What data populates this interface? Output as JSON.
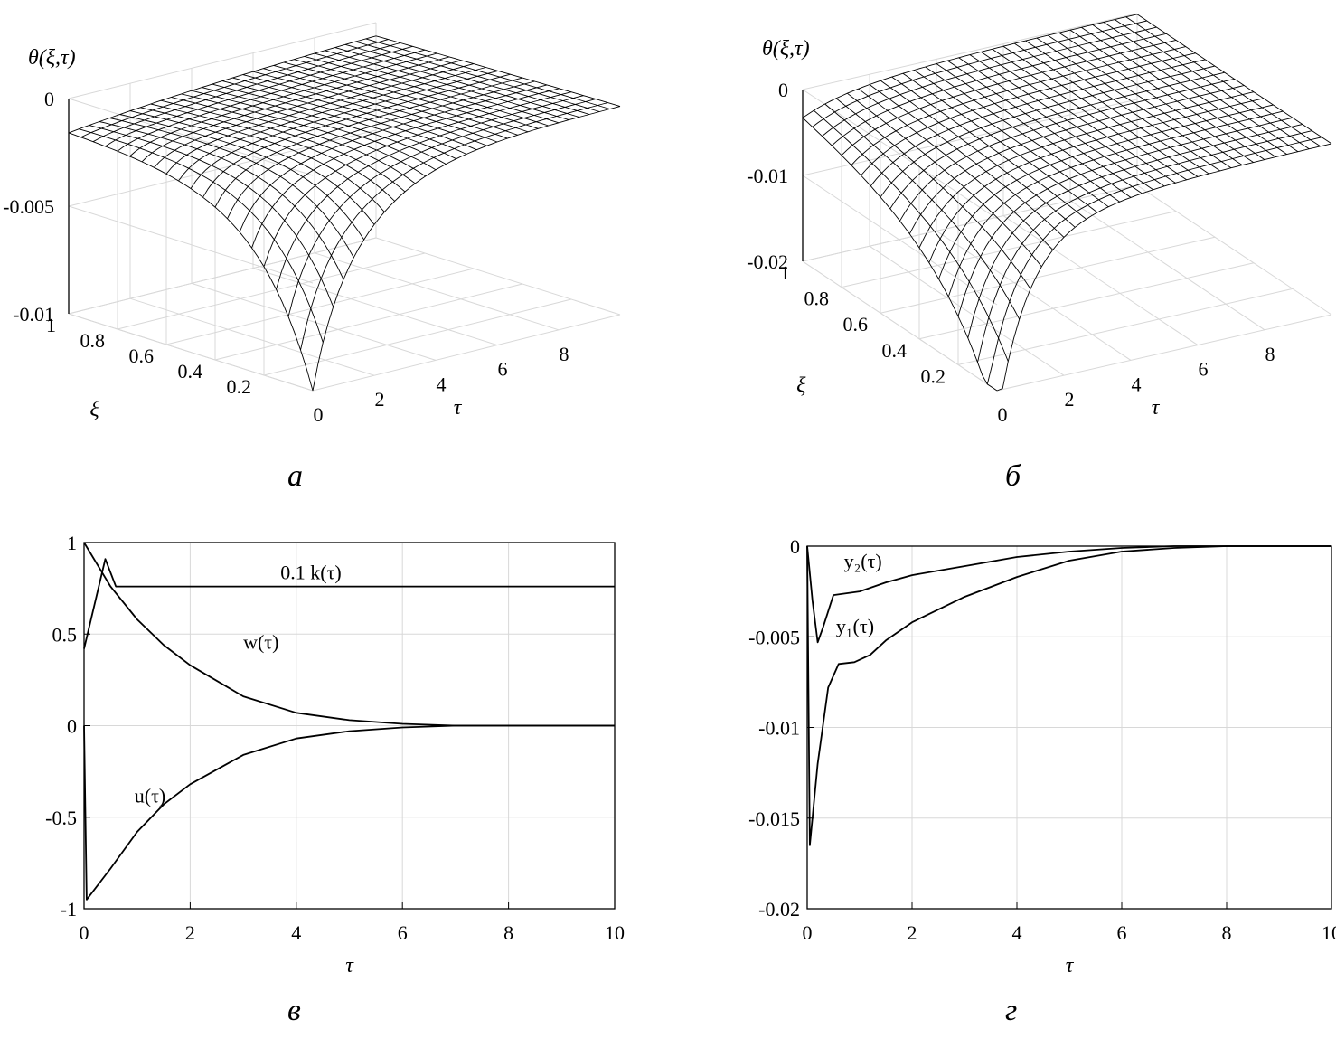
{
  "chart_data": [
    {
      "id": "a",
      "type": "surface",
      "panel_label": "а",
      "zlabel": "θ(ξ,τ)",
      "xlabel": "τ",
      "ylabel": "ξ",
      "xlim": [
        0,
        10
      ],
      "ylim": [
        0,
        1
      ],
      "zlim": [
        -0.01,
        0
      ],
      "x_ticks": [
        "0",
        "2",
        "4",
        "6",
        "8"
      ],
      "y_ticks": [
        "0.2",
        "0.4",
        "0.6",
        "0.8",
        "1"
      ],
      "z_ticks": [
        "0",
        "-0.005",
        "-0.01"
      ],
      "surface_min": -0.01,
      "surface_edge_xi1": -0.0015
    },
    {
      "id": "b",
      "type": "surface",
      "panel_label": "б",
      "zlabel": "θ(ξ,τ)",
      "xlabel": "τ",
      "ylabel": "ξ",
      "xlim": [
        0,
        10
      ],
      "ylim": [
        0,
        1
      ],
      "zlim": [
        -0.02,
        0
      ],
      "x_ticks": [
        "0",
        "2",
        "4",
        "6",
        "8"
      ],
      "y_ticks": [
        "0.2",
        "0.4",
        "0.6",
        "0.8",
        "1"
      ],
      "z_ticks": [
        "0",
        "-0.01",
        "-0.02"
      ],
      "surface_min": -0.0165
    },
    {
      "id": "c",
      "type": "line",
      "panel_label": "в",
      "xlabel": "τ",
      "xlim": [
        0,
        10
      ],
      "ylim": [
        -1,
        1
      ],
      "x_ticks": [
        "0",
        "2",
        "4",
        "6",
        "8",
        "10"
      ],
      "y_ticks": [
        "1",
        "0.5",
        "0",
        "-0.5",
        "-1"
      ],
      "series": [
        {
          "name": "0.1 k(τ)",
          "x": [
            0,
            0.4,
            0.6,
            2,
            4,
            6,
            8,
            10
          ],
          "values": [
            0.42,
            0.91,
            0.76,
            0.76,
            0.76,
            0.76,
            0.76,
            0.76
          ]
        },
        {
          "name": "w(τ)",
          "x": [
            0,
            0.5,
            1,
            1.5,
            2,
            3,
            4,
            5,
            6,
            7,
            8,
            10
          ],
          "values": [
            1,
            0.76,
            0.58,
            0.44,
            0.33,
            0.16,
            0.07,
            0.03,
            0.01,
            0,
            0,
            0
          ]
        },
        {
          "name": "u(τ)",
          "x": [
            0,
            0.05,
            0.5,
            1,
            1.5,
            2,
            3,
            4,
            5,
            6,
            7,
            8,
            10
          ],
          "values": [
            0,
            -0.95,
            -0.78,
            -0.58,
            -0.43,
            -0.32,
            -0.16,
            -0.07,
            -0.03,
            -0.01,
            0,
            0,
            0
          ]
        }
      ]
    },
    {
      "id": "d",
      "type": "line",
      "panel_label": "г",
      "xlabel": "τ",
      "xlim": [
        0,
        10
      ],
      "ylim": [
        -0.02,
        0
      ],
      "x_ticks": [
        "0",
        "2",
        "4",
        "6",
        "8",
        "10"
      ],
      "y_ticks": [
        "0",
        "-0.005",
        "-0.01",
        "-0.015",
        "-0.02"
      ],
      "series": [
        {
          "name": "y₂(τ)",
          "x": [
            0,
            0.1,
            0.2,
            0.3,
            0.5,
            1,
            1.5,
            2,
            3,
            4,
            5,
            6,
            7,
            8,
            10
          ],
          "values": [
            0,
            -0.003,
            -0.0053,
            -0.0045,
            -0.0027,
            -0.0025,
            -0.002,
            -0.0016,
            -0.0011,
            -0.0006,
            -0.0003,
            -0.0001,
            0,
            0,
            0
          ]
        },
        {
          "name": "y₁(τ)",
          "x": [
            0,
            0.05,
            0.2,
            0.4,
            0.6,
            0.9,
            1.2,
            1.5,
            2,
            3,
            4,
            5,
            6,
            7,
            8,
            10
          ],
          "values": [
            0,
            -0.0165,
            -0.012,
            -0.0078,
            -0.0065,
            -0.0064,
            -0.006,
            -0.0052,
            -0.0042,
            -0.0028,
            -0.0017,
            -0.0008,
            -0.0003,
            -0.0001,
            0,
            0
          ]
        }
      ]
    }
  ]
}
